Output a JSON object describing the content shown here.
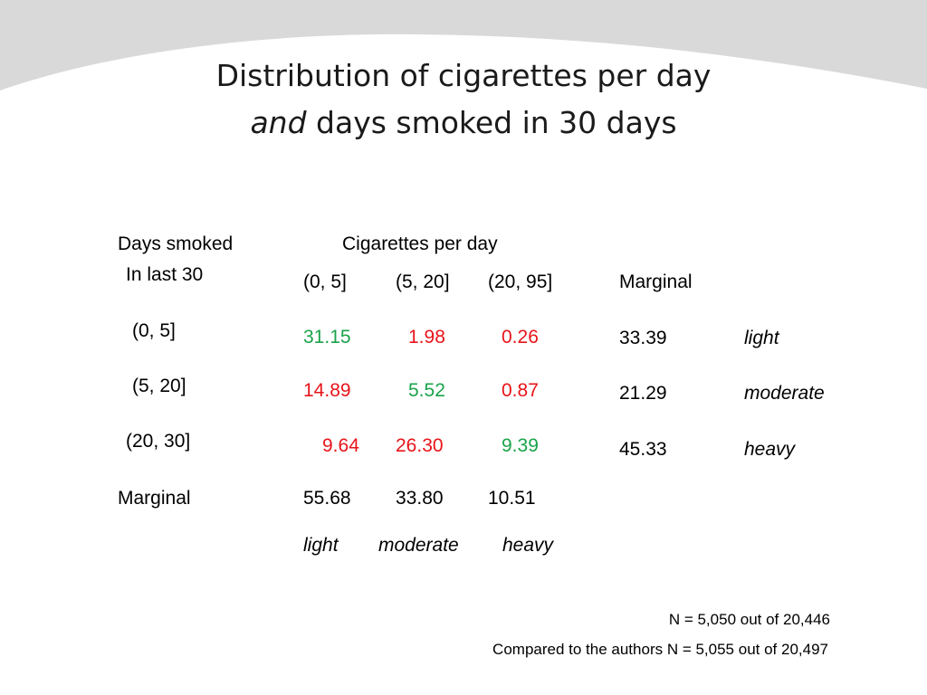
{
  "slide": {
    "title_line1": "Distribution of cigarettes per day",
    "title_line2_italic": "and",
    "title_line2_rest": " days smoked in 30 days"
  },
  "table": {
    "row_header_line1": "Days smoked",
    "row_header_line2": "In last 30",
    "col_group_header": "Cigarettes per day",
    "col_headers": [
      "(0, 5]",
      "(5, 20]",
      "(20, 95]"
    ],
    "marginal_col_header": "Marginal",
    "rows": [
      {
        "label": "(0, 5]",
        "values": [
          "31.15",
          "1.98",
          "0.26"
        ],
        "value_colors": [
          "#1aa34a",
          "#e8141a",
          "#e8141a"
        ],
        "marginal": "33.39",
        "category": "light"
      },
      {
        "label": "(5, 20]",
        "values": [
          "14.89",
          "5.52",
          "0.87"
        ],
        "value_colors": [
          "#e8141a",
          "#1aa34a",
          "#e8141a"
        ],
        "marginal": "21.29",
        "category": "moderate"
      },
      {
        "label": "(20, 30]",
        "values": [
          "9.64",
          "26.30",
          "9.39"
        ],
        "value_colors": [
          "#e8141a",
          "#e8141a",
          "#1aa34a"
        ],
        "marginal": "45.33",
        "category": "heavy"
      }
    ],
    "marginal_row_label": "Marginal",
    "marginal_row_values": [
      "55.68",
      "33.80",
      "10.51"
    ],
    "column_categories": [
      "light",
      "moderate",
      "heavy"
    ]
  },
  "notes": {
    "sample": "N = 5,050 out of 20,446",
    "comparison": "Compared to  the authors  N = 5,055 out of 20,497"
  },
  "colors": {
    "agree": "#1aa34a",
    "disagree": "#e8141a",
    "banner": "#d9d9d9"
  }
}
